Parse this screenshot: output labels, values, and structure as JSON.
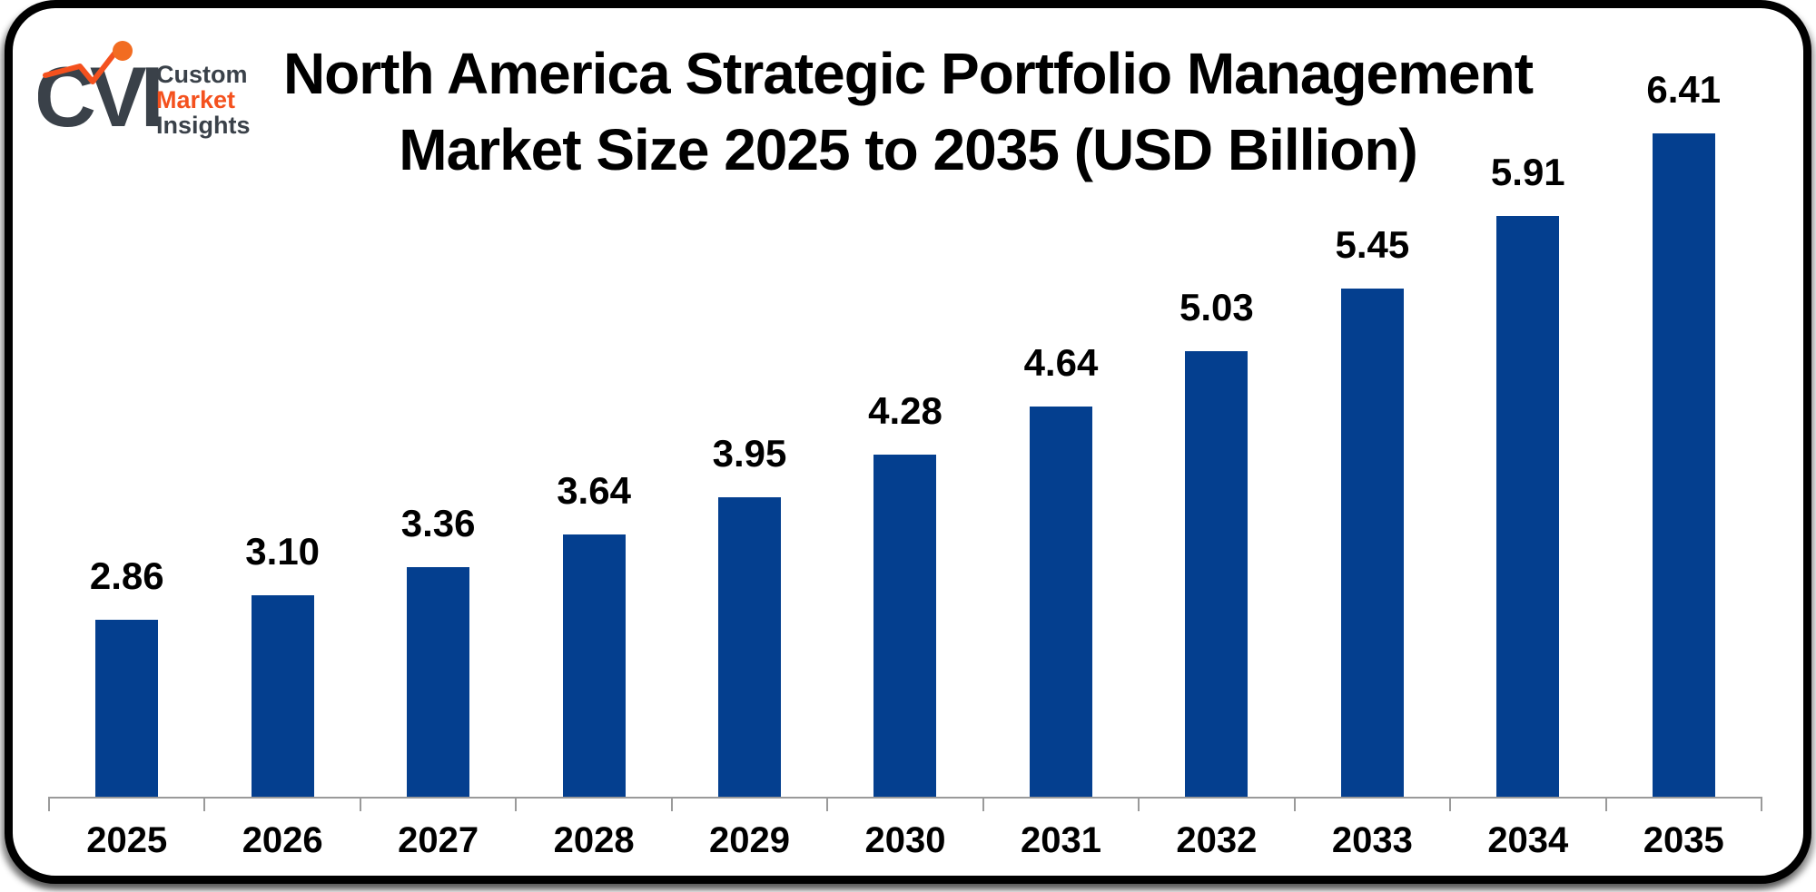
{
  "logo": {
    "monogram": "CVI",
    "company_lines": {
      "line1": "Custom",
      "line2": "Market",
      "line3": "Insights"
    }
  },
  "title": {
    "line1": "North America Strategic Portfolio Management",
    "line2": "Market Size 2025 to 2035 (USD Billion)"
  },
  "chart_data": {
    "type": "bar",
    "title": "North America Strategic Portfolio Management Market Size 2025 to 2035 (USD Billion)",
    "unit": "USD Billion",
    "categories": [
      "2025",
      "2026",
      "2027",
      "2028",
      "2029",
      "2030",
      "2031",
      "2032",
      "2033",
      "2034",
      "2035"
    ],
    "values": [
      2.86,
      3.1,
      3.36,
      3.64,
      3.95,
      4.28,
      4.64,
      5.03,
      5.45,
      5.91,
      6.41
    ],
    "value_labels": [
      "2.86",
      "3.10",
      "3.36",
      "3.64",
      "3.95",
      "4.28",
      "4.64",
      "5.03",
      "5.45",
      "5.91",
      "6.41"
    ],
    "xlabel": "",
    "ylabel": "",
    "legend_position": "none",
    "gridlines": false,
    "y_axis_visible": false,
    "bar_color": "#043F8F",
    "axis_color": "#9A9A9A",
    "label_color": "#000000"
  },
  "colors": {
    "logo_dark": "#3A4149",
    "logo_orange": "#F4511E",
    "logo_dot": "#F26C21",
    "frame_border": "#000000",
    "background": "#FFFFFF"
  }
}
